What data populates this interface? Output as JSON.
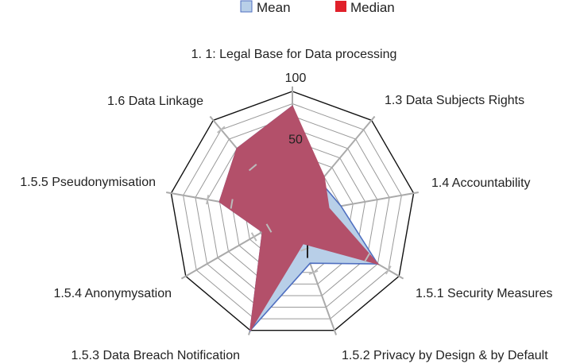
{
  "chart_data": {
    "type": "radar",
    "categories": [
      "1. 1: Legal Base for Data processing",
      "1.3 Data Subjects Rights",
      "1.4 Accountability",
      "1.5.1 Security Measures",
      "1.5.2 Privacy by Design & by Default",
      "1.5.3 Data Breach Notification",
      "1.5.4 Anonymysation",
      "1.5.5 Pseudonymisation",
      "1.6 Data Linkage"
    ],
    "series": [
      {
        "name": "Mean",
        "values": [
          88,
          35,
          40,
          80,
          42,
          100,
          28,
          60,
          70
        ],
        "color": "#b8cfe8",
        "stroke": "#4f6fc0"
      },
      {
        "name": "Median",
        "values": [
          88,
          40,
          30,
          80,
          25,
          100,
          28,
          60,
          70
        ],
        "color": "#b3506a",
        "stroke": "#b3506a"
      }
    ],
    "legend_colors": {
      "Mean": "#b8cfe8",
      "Median": "#e0202a"
    },
    "rlim": [
      0,
      100
    ],
    "ticks": [
      {
        "value": 50,
        "label": "50"
      },
      {
        "value": 100,
        "label": "100"
      }
    ],
    "grid_steps": 10,
    "error_bars": [
      {
        "axis": 3,
        "low": 70,
        "high": 90
      },
      {
        "axis": 4,
        "low": 30,
        "high": 50
      },
      {
        "axis": 6,
        "low": 22,
        "high": 36
      },
      {
        "axis": 7,
        "low": 50,
        "high": 70
      },
      {
        "axis": 8,
        "low": 50,
        "high": 90
      }
    ],
    "legend": "top"
  }
}
